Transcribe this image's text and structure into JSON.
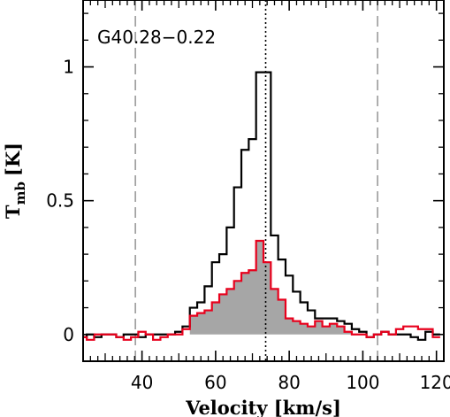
{
  "chart_data": {
    "type": "line",
    "title": "G40.28−0.22",
    "xlabel": "Velocity [km/s]",
    "ylabel_main": "T",
    "ylabel_sub": "mb",
    "ylabel_unit": "[K]",
    "xlim": [
      24,
      122
    ],
    "ylim": [
      -0.1,
      1.25
    ],
    "x_ticks": [
      40,
      60,
      80,
      100,
      120
    ],
    "y_ticks": [
      {
        "value": 0,
        "label": "0"
      },
      {
        "value": 0.5,
        "label": "0.5"
      },
      {
        "value": 1,
        "label": "1"
      }
    ],
    "vlines": [
      {
        "x": 38.2,
        "style": "dashed",
        "color": "#999999"
      },
      {
        "x": 73.6,
        "style": "dotted",
        "color": "#000000"
      },
      {
        "x": 104.0,
        "style": "dashed",
        "color": "#999999"
      }
    ],
    "colors": {
      "black_series": "#000000",
      "red_series": "#e8001c",
      "fill": "#a6a6a6"
    },
    "fill_range": [
      52,
      97
    ],
    "series": [
      {
        "color": "#000000",
        "x": [
          24,
          26,
          28,
          30,
          32,
          34,
          36,
          38,
          40,
          42,
          44,
          46,
          48,
          50,
          52,
          54,
          56,
          58,
          60,
          62,
          64,
          66,
          68,
          70,
          72,
          74,
          76,
          78,
          80,
          82,
          84,
          86,
          88,
          90,
          92,
          94,
          96,
          98,
          100,
          102,
          104,
          106,
          108,
          110,
          112,
          114,
          116,
          118,
          120
        ],
        "y": [
          -0.01,
          0.0,
          -0.01,
          0.0,
          0.0,
          -0.01,
          0.0,
          0.0,
          -0.01,
          0.0,
          0.0,
          0.0,
          0.0,
          0.01,
          0.03,
          0.1,
          0.12,
          0.18,
          0.27,
          0.3,
          0.4,
          0.55,
          0.69,
          0.73,
          0.98,
          0.98,
          0.37,
          0.28,
          0.22,
          0.16,
          0.12,
          0.09,
          0.06,
          0.06,
          0.06,
          0.05,
          0.04,
          0.02,
          0.01,
          -0.01,
          0.0,
          0.01,
          0.0,
          0.0,
          0.0,
          -0.01,
          -0.02,
          0.01,
          0.0
        ]
      },
      {
        "color": "#e8001c",
        "x": [
          24,
          26,
          28,
          30,
          32,
          34,
          36,
          38,
          40,
          42,
          44,
          46,
          48,
          50,
          52,
          54,
          56,
          58,
          60,
          62,
          64,
          66,
          68,
          70,
          72,
          74,
          76,
          78,
          80,
          82,
          84,
          86,
          88,
          90,
          92,
          94,
          96,
          98,
          100,
          102,
          104,
          106,
          108,
          110,
          112,
          114,
          116,
          118,
          120
        ],
        "y": [
          -0.01,
          -0.02,
          0.0,
          0.0,
          0.0,
          -0.01,
          -0.02,
          -0.01,
          0.01,
          0.0,
          -0.02,
          -0.01,
          0.0,
          0.0,
          0.02,
          0.07,
          0.08,
          0.09,
          0.12,
          0.15,
          0.17,
          0.2,
          0.23,
          0.24,
          0.35,
          0.27,
          0.17,
          0.13,
          0.06,
          0.05,
          0.04,
          0.03,
          0.05,
          0.03,
          0.04,
          0.03,
          0.01,
          0.0,
          0.0,
          -0.01,
          0.0,
          0.01,
          0.0,
          0.02,
          0.03,
          0.03,
          0.02,
          0.02,
          -0.01
        ]
      }
    ]
  }
}
